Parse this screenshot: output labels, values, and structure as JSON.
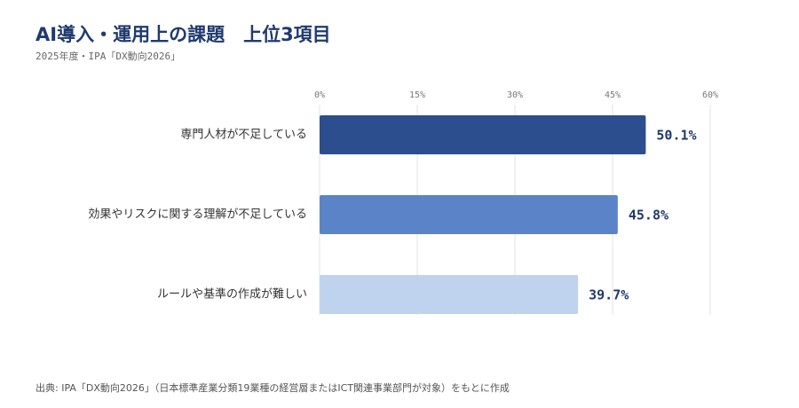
{
  "chart_data": {
    "type": "hbar",
    "title": "AI導入・運用上の課題　上位3項目",
    "subtitle": "2025年度・IPA「DX動向2026」",
    "source": "出典: IPA「DX動向2026」（日本標準産業分類19業種の経営層またはICT関連事業部門が対象）をもとに作成",
    "categories": [
      "専門人材が不足している",
      "効果やリスクに関する理解が不足している",
      "ルールや基準の作成が難しい"
    ],
    "values": [
      50.1,
      45.8,
      39.7
    ],
    "value_labels": [
      "50.1%",
      "45.8%",
      "39.7%"
    ],
    "colors": [
      "#2d4e8e",
      "#5b84c8",
      "#bfd3ef"
    ],
    "xlim": [
      0,
      60
    ],
    "xticks": [
      {
        "value": 0,
        "label": "0%"
      },
      {
        "value": 15,
        "label": "15%"
      },
      {
        "value": 30,
        "label": "30%"
      },
      {
        "value": 45,
        "label": "45%"
      },
      {
        "value": 60,
        "label": "60%"
      }
    ],
    "grid": true
  }
}
